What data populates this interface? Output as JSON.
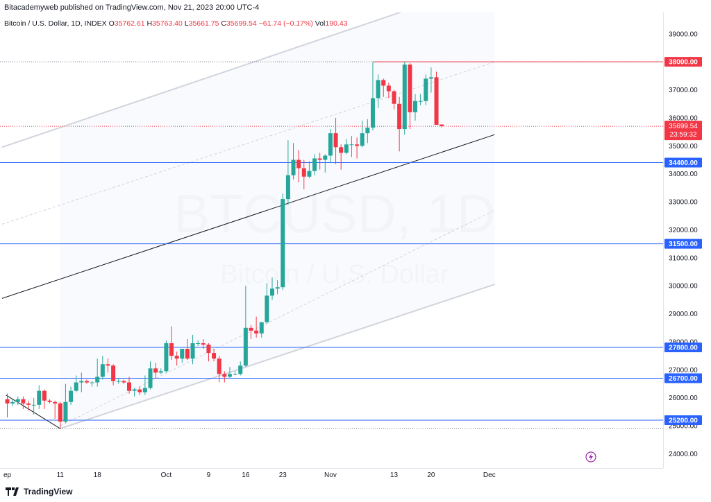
{
  "header": {
    "publisher_line": "Bitacademyweb published on TradingView.com, Nov 21, 2023 20:00 UTC-4",
    "symbol": "Bitcoin / U.S. Dollar, 1D, INDEX",
    "o_label": "O",
    "o_value": "35762.61",
    "h_label": "H",
    "h_value": "35763.40",
    "l_label": "L",
    "l_value": "35661.75",
    "c_label": "C",
    "c_value": "35699.54",
    "change": "−61.74 (−0.17%)",
    "vol_label": "Vol",
    "vol_value": "190.43"
  },
  "watermark": {
    "line1": "BTCUSD, 1D",
    "line2": "Bitcoin / U.S. Dollar"
  },
  "footer": {
    "brand": "TradingView"
  },
  "colors": {
    "up": "#26a69a",
    "down": "#f23645",
    "hline": "#2962ff",
    "channel": "#d1d4dc",
    "trend": "#131722",
    "price_label": "#f23645"
  },
  "chart_data": {
    "type": "candlestick",
    "y_ticks": [
      "24000.00",
      "25000.00",
      "26000.00",
      "27000.00",
      "28000.00",
      "29000.00",
      "30000.00",
      "31000.00",
      "32000.00",
      "33000.00",
      "34000.00",
      "35000.00",
      "36000.00",
      "37000.00",
      "38000.00",
      "39000.00"
    ],
    "x_ticks": [
      {
        "date": "2023-09-01",
        "label": "ep"
      },
      {
        "date": "2023-09-11",
        "label": "11"
      },
      {
        "date": "2023-09-18",
        "label": "18"
      },
      {
        "date": "2023-10-01",
        "label": "Oct"
      },
      {
        "date": "2023-10-09",
        "label": "9"
      },
      {
        "date": "2023-10-16",
        "label": "16"
      },
      {
        "date": "2023-10-23",
        "label": "23"
      },
      {
        "date": "2023-11-01",
        "label": "Nov"
      },
      {
        "date": "2023-11-13",
        "label": "13"
      },
      {
        "date": "2023-11-20",
        "label": "20"
      },
      {
        "date": "2023-12-01",
        "label": "Dec"
      }
    ],
    "horizontal_levels": [
      {
        "price": 38000,
        "label": "38000.00",
        "color": "#f23645"
      },
      {
        "price": 34400,
        "label": "34400.00",
        "color": "#2962ff"
      },
      {
        "price": 31500,
        "label": "31500.00",
        "color": "#2962ff"
      },
      {
        "price": 27800,
        "label": "27800.00",
        "color": "#2962ff"
      },
      {
        "price": 26700,
        "label": "26700.00",
        "color": "#2962ff"
      },
      {
        "price": 25200,
        "label": "25200.00",
        "color": "#2962ff"
      }
    ],
    "last_price": {
      "label": "35699.54",
      "countdown": "23:59:32"
    },
    "candles": [
      {
        "date": "2023-09-01",
        "o": 25950,
        "h": 26150,
        "l": 25300,
        "c": 25800
      },
      {
        "date": "2023-09-02",
        "o": 25800,
        "h": 25950,
        "l": 25700,
        "c": 25850
      },
      {
        "date": "2023-09-03",
        "o": 25850,
        "h": 26050,
        "l": 25750,
        "c": 25950
      },
      {
        "date": "2023-09-04",
        "o": 25950,
        "h": 26050,
        "l": 25600,
        "c": 25800
      },
      {
        "date": "2023-09-05",
        "o": 25800,
        "h": 25900,
        "l": 25550,
        "c": 25750
      },
      {
        "date": "2023-09-06",
        "o": 25750,
        "h": 26000,
        "l": 25400,
        "c": 25750
      },
      {
        "date": "2023-09-07",
        "o": 25750,
        "h": 26450,
        "l": 25600,
        "c": 26250
      },
      {
        "date": "2023-09-08",
        "o": 26250,
        "h": 26300,
        "l": 25600,
        "c": 25900
      },
      {
        "date": "2023-09-09",
        "o": 25900,
        "h": 25950,
        "l": 25800,
        "c": 25850
      },
      {
        "date": "2023-09-10",
        "o": 25850,
        "h": 25900,
        "l": 25250,
        "c": 25800
      },
      {
        "date": "2023-09-11",
        "o": 25800,
        "h": 25850,
        "l": 24900,
        "c": 25150
      },
      {
        "date": "2023-09-12",
        "o": 25150,
        "h": 26500,
        "l": 25100,
        "c": 25850
      },
      {
        "date": "2023-09-13",
        "o": 25850,
        "h": 26400,
        "l": 25750,
        "c": 26250
      },
      {
        "date": "2023-09-14",
        "o": 26250,
        "h": 26800,
        "l": 26200,
        "c": 26550
      },
      {
        "date": "2023-09-15",
        "o": 26550,
        "h": 26900,
        "l": 26200,
        "c": 26600
      },
      {
        "date": "2023-09-16",
        "o": 26600,
        "h": 26650,
        "l": 26500,
        "c": 26550
      },
      {
        "date": "2023-09-17",
        "o": 26550,
        "h": 26600,
        "l": 26400,
        "c": 26550
      },
      {
        "date": "2023-09-18",
        "o": 26550,
        "h": 27400,
        "l": 26400,
        "c": 26750
      },
      {
        "date": "2023-09-19",
        "o": 26750,
        "h": 27500,
        "l": 26650,
        "c": 27200
      },
      {
        "date": "2023-09-20",
        "o": 27200,
        "h": 27400,
        "l": 26900,
        "c": 27150
      },
      {
        "date": "2023-09-21",
        "o": 27150,
        "h": 27200,
        "l": 26450,
        "c": 26600
      },
      {
        "date": "2023-09-22",
        "o": 26600,
        "h": 26700,
        "l": 26500,
        "c": 26600
      },
      {
        "date": "2023-09-23",
        "o": 26600,
        "h": 26650,
        "l": 26500,
        "c": 26550
      },
      {
        "date": "2023-09-24",
        "o": 26550,
        "h": 26750,
        "l": 26150,
        "c": 26250
      },
      {
        "date": "2023-09-25",
        "o": 26250,
        "h": 26350,
        "l": 26050,
        "c": 26300
      },
      {
        "date": "2023-09-26",
        "o": 26300,
        "h": 26400,
        "l": 26100,
        "c": 26200
      },
      {
        "date": "2023-09-27",
        "o": 26200,
        "h": 26800,
        "l": 26100,
        "c": 26350
      },
      {
        "date": "2023-09-28",
        "o": 26350,
        "h": 27300,
        "l": 26300,
        "c": 27050
      },
      {
        "date": "2023-09-29",
        "o": 27050,
        "h": 27250,
        "l": 26700,
        "c": 26900
      },
      {
        "date": "2023-09-30",
        "o": 26900,
        "h": 27050,
        "l": 26850,
        "c": 26950
      },
      {
        "date": "2023-10-01",
        "o": 26950,
        "h": 28050,
        "l": 26900,
        "c": 27950
      },
      {
        "date": "2023-10-02",
        "o": 27950,
        "h": 28550,
        "l": 27350,
        "c": 27500
      },
      {
        "date": "2023-10-03",
        "o": 27500,
        "h": 27650,
        "l": 27150,
        "c": 27400
      },
      {
        "date": "2023-10-04",
        "o": 27400,
        "h": 27750,
        "l": 27250,
        "c": 27750
      },
      {
        "date": "2023-10-05",
        "o": 27750,
        "h": 28100,
        "l": 27350,
        "c": 27400
      },
      {
        "date": "2023-10-06",
        "o": 27400,
        "h": 28250,
        "l": 27200,
        "c": 27950
      },
      {
        "date": "2023-10-07",
        "o": 27950,
        "h": 28050,
        "l": 27850,
        "c": 27950
      },
      {
        "date": "2023-10-08",
        "o": 27950,
        "h": 28100,
        "l": 27750,
        "c": 27900
      },
      {
        "date": "2023-10-09",
        "o": 27900,
        "h": 27950,
        "l": 27300,
        "c": 27600
      },
      {
        "date": "2023-10-10",
        "o": 27600,
        "h": 27750,
        "l": 27300,
        "c": 27400
      },
      {
        "date": "2023-10-11",
        "o": 27400,
        "h": 27500,
        "l": 26550,
        "c": 26850
      },
      {
        "date": "2023-10-12",
        "o": 26850,
        "h": 26950,
        "l": 26550,
        "c": 26750
      },
      {
        "date": "2023-10-13",
        "o": 26750,
        "h": 27100,
        "l": 26700,
        "c": 26850
      },
      {
        "date": "2023-10-14",
        "o": 26850,
        "h": 26950,
        "l": 26800,
        "c": 26850
      },
      {
        "date": "2023-10-15",
        "o": 26850,
        "h": 27300,
        "l": 26800,
        "c": 27150
      },
      {
        "date": "2023-10-16",
        "o": 27150,
        "h": 30000,
        "l": 27100,
        "c": 28500
      },
      {
        "date": "2023-10-17",
        "o": 28500,
        "h": 28600,
        "l": 28100,
        "c": 28400
      },
      {
        "date": "2023-10-18",
        "o": 28400,
        "h": 28900,
        "l": 28150,
        "c": 28300
      },
      {
        "date": "2023-10-19",
        "o": 28300,
        "h": 28700,
        "l": 28150,
        "c": 28700
      },
      {
        "date": "2023-10-20",
        "o": 28700,
        "h": 30100,
        "l": 28650,
        "c": 29650
      },
      {
        "date": "2023-10-21",
        "o": 29650,
        "h": 30300,
        "l": 29500,
        "c": 29900
      },
      {
        "date": "2023-10-22",
        "o": 29900,
        "h": 30200,
        "l": 29700,
        "c": 29950
      },
      {
        "date": "2023-10-23",
        "o": 29950,
        "h": 33300,
        "l": 29850,
        "c": 33100
      },
      {
        "date": "2023-10-24",
        "o": 33100,
        "h": 35200,
        "l": 32900,
        "c": 33950
      },
      {
        "date": "2023-10-25",
        "o": 33950,
        "h": 35100,
        "l": 33800,
        "c": 34500
      },
      {
        "date": "2023-10-26",
        "o": 34500,
        "h": 34850,
        "l": 33700,
        "c": 34200
      },
      {
        "date": "2023-10-27",
        "o": 34200,
        "h": 34500,
        "l": 33450,
        "c": 33900
      },
      {
        "date": "2023-10-28",
        "o": 33900,
        "h": 34450,
        "l": 33850,
        "c": 34100
      },
      {
        "date": "2023-10-29",
        "o": 34100,
        "h": 34700,
        "l": 33950,
        "c": 34550
      },
      {
        "date": "2023-10-30",
        "o": 34550,
        "h": 34750,
        "l": 34150,
        "c": 34500
      },
      {
        "date": "2023-10-31",
        "o": 34500,
        "h": 34700,
        "l": 34050,
        "c": 34650
      },
      {
        "date": "2023-11-01",
        "o": 34650,
        "h": 35600,
        "l": 34400,
        "c": 35450
      },
      {
        "date": "2023-11-02",
        "o": 35450,
        "h": 36000,
        "l": 34350,
        "c": 34950
      },
      {
        "date": "2023-11-03",
        "o": 34950,
        "h": 35050,
        "l": 34150,
        "c": 34750
      },
      {
        "date": "2023-11-04",
        "o": 34750,
        "h": 35250,
        "l": 34700,
        "c": 35050
      },
      {
        "date": "2023-11-05",
        "o": 35050,
        "h": 35350,
        "l": 34600,
        "c": 35050
      },
      {
        "date": "2023-11-06",
        "o": 35050,
        "h": 35300,
        "l": 34550,
        "c": 35000
      },
      {
        "date": "2023-11-07",
        "o": 35000,
        "h": 35900,
        "l": 34950,
        "c": 35450
      },
      {
        "date": "2023-11-08",
        "o": 35450,
        "h": 35950,
        "l": 35100,
        "c": 35650
      },
      {
        "date": "2023-11-09",
        "o": 35650,
        "h": 38000,
        "l": 35550,
        "c": 36700
      },
      {
        "date": "2023-11-10",
        "o": 36700,
        "h": 37550,
        "l": 36350,
        "c": 37350
      },
      {
        "date": "2023-11-11",
        "o": 37350,
        "h": 37400,
        "l": 36750,
        "c": 37150
      },
      {
        "date": "2023-11-12",
        "o": 37150,
        "h": 37250,
        "l": 36700,
        "c": 36950
      },
      {
        "date": "2023-11-13",
        "o": 36950,
        "h": 37000,
        "l": 36300,
        "c": 36500
      },
      {
        "date": "2023-11-14",
        "o": 36500,
        "h": 36750,
        "l": 34800,
        "c": 35600
      },
      {
        "date": "2023-11-15",
        "o": 35600,
        "h": 38000,
        "l": 35400,
        "c": 37900
      },
      {
        "date": "2023-11-16",
        "o": 37900,
        "h": 37950,
        "l": 35600,
        "c": 36200
      },
      {
        "date": "2023-11-17",
        "o": 36200,
        "h": 36850,
        "l": 35900,
        "c": 36600
      },
      {
        "date": "2023-11-18",
        "o": 36600,
        "h": 36850,
        "l": 36450,
        "c": 36600
      },
      {
        "date": "2023-11-19",
        "o": 36600,
        "h": 37550,
        "l": 36450,
        "c": 37400
      },
      {
        "date": "2023-11-20",
        "o": 37400,
        "h": 37800,
        "l": 36900,
        "c": 37450
      },
      {
        "date": "2023-11-21",
        "o": 37450,
        "h": 37650,
        "l": 35750,
        "c": 35750
      },
      {
        "date": "2023-11-22",
        "o": 35762.61,
        "h": 35763.4,
        "l": 35661.75,
        "c": 35699.54
      }
    ],
    "channel": {
      "upper": {
        "from": {
          "date": "2023-08-31",
          "price": 34950
        },
        "to": {
          "date": "2023-11-10",
          "price": 39500
        }
      },
      "mid_upper": {
        "from": {
          "date": "2023-08-31",
          "price": 32200
        },
        "to": {
          "date": "2023-12-02",
          "price": 38000
        }
      },
      "median": {
        "from": {
          "date": "2023-08-31",
          "price": 29550
        },
        "to": {
          "date": "2023-12-02",
          "price": 35400
        }
      },
      "mid_lower": {
        "from": {
          "date": "2023-09-11",
          "price": 25000
        },
        "to": {
          "date": "2023-12-02",
          "price": 32700
        }
      },
      "lower": {
        "from": {
          "date": "2023-09-11",
          "price": 24900
        },
        "to": {
          "date": "2023-12-02",
          "price": 30050
        }
      },
      "down_trend": {
        "from": {
          "date": "2023-09-01",
          "price": 26100
        },
        "to": {
          "date": "2023-09-11",
          "price": 24900
        }
      }
    }
  }
}
